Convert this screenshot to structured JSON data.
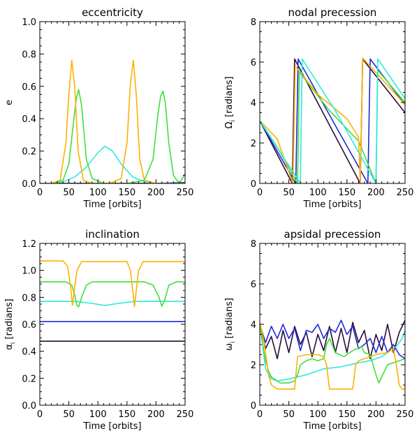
{
  "chart_data": [
    {
      "type": "line",
      "title": "eccentricity",
      "xlabel": "Time [orbits]",
      "ylabel": "e",
      "xlim": [
        0,
        250
      ],
      "ylim": [
        0,
        1.0
      ],
      "xticks": [
        "0",
        "50",
        "100",
        "150",
        "200",
        "250"
      ],
      "yticks": [
        "0.0",
        "0.2",
        "0.4",
        "0.6",
        "0.8",
        "1.0"
      ],
      "series": [
        {
          "color": "#2a0a3a",
          "x": [
            0,
            50,
            100,
            150,
            200,
            250
          ],
          "y": [
            0.0,
            0.0,
            0.0,
            0.0,
            0.0,
            0.0
          ]
        },
        {
          "color": "#1c2bd6",
          "x": [
            0,
            50,
            100,
            150,
            200,
            250
          ],
          "y": [
            0.0,
            0.0,
            0.0,
            0.0,
            0.0,
            0.005
          ]
        },
        {
          "color": "#2ee8e0",
          "x": [
            0,
            20,
            40,
            60,
            80,
            100,
            112,
            125,
            140,
            160,
            180,
            200,
            220,
            250
          ],
          "y": [
            0.0,
            0.0,
            0.01,
            0.04,
            0.1,
            0.19,
            0.23,
            0.2,
            0.12,
            0.04,
            0.01,
            0.0,
            0.0,
            0.0
          ]
        },
        {
          "color": "#3ee03a",
          "x": [
            0,
            20,
            40,
            50,
            58,
            63,
            67,
            72,
            80,
            90,
            110,
            150,
            180,
            195,
            203,
            208,
            212,
            216,
            222,
            230,
            240,
            250
          ],
          "y": [
            0.0,
            0.0,
            0.02,
            0.12,
            0.38,
            0.53,
            0.58,
            0.48,
            0.15,
            0.03,
            0.0,
            0.0,
            0.02,
            0.15,
            0.42,
            0.54,
            0.57,
            0.5,
            0.25,
            0.05,
            0.0,
            0.06
          ]
        },
        {
          "color": "#ffb000",
          "x": [
            0,
            20,
            35,
            45,
            50,
            55,
            60,
            66,
            75,
            90,
            120,
            140,
            150,
            156,
            161,
            166,
            172,
            180,
            200,
            240,
            250
          ],
          "y": [
            0.0,
            0.0,
            0.02,
            0.25,
            0.55,
            0.76,
            0.6,
            0.2,
            0.02,
            0.0,
            0.0,
            0.03,
            0.25,
            0.62,
            0.76,
            0.55,
            0.15,
            0.02,
            0.0,
            0.0,
            0.0
          ]
        }
      ]
    },
    {
      "type": "line",
      "title": "nodal precession",
      "xlabel": "Time [orbits]",
      "ylabel": "Ω",
      "ylabel_sub": "i",
      "ylabel_unit": " [radians]",
      "xlim": [
        0,
        250
      ],
      "ylim": [
        0,
        8
      ],
      "xticks": [
        "0",
        "50",
        "100",
        "150",
        "200",
        "250"
      ],
      "yticks": [
        "0",
        "2",
        "4",
        "6",
        "8"
      ],
      "series": [
        {
          "color": "#2a0a3a",
          "x": [
            0,
            56,
            60,
            173,
            177,
            250
          ],
          "y": [
            3.1,
            0.0,
            6.15,
            0.0,
            6.15,
            3.5
          ]
        },
        {
          "color": "#1c2bd6",
          "x": [
            0,
            62,
            66,
            186,
            190,
            250
          ],
          "y": [
            3.1,
            0.0,
            6.15,
            0.0,
            6.15,
            3.9
          ]
        },
        {
          "color": "#3ee03a",
          "x": [
            0,
            30,
            65,
            68,
            120,
            170,
            200,
            203,
            250
          ],
          "y": [
            3.1,
            1.8,
            0.0,
            5.5,
            3.6,
            2.1,
            0.0,
            5.6,
            4.0
          ]
        },
        {
          "color": "#ffb000",
          "x": [
            0,
            30,
            57,
            61,
            100,
            150,
            170,
            173,
            177,
            250
          ],
          "y": [
            3.1,
            2.2,
            0.0,
            5.8,
            4.4,
            3.2,
            2.3,
            0.0,
            6.2,
            3.9
          ]
        },
        {
          "color": "#2ee8e0",
          "x": [
            0,
            70,
            73,
            130,
            200,
            203,
            250
          ],
          "y": [
            3.1,
            0.0,
            6.15,
            3.6,
            0.0,
            6.15,
            4.2
          ]
        }
      ]
    },
    {
      "type": "line",
      "title": "inclination",
      "xlabel": "Time [orbits]",
      "ylabel": "α",
      "ylabel_sub": "i",
      "ylabel_unit": " [radians]",
      "xlim": [
        0,
        250
      ],
      "ylim": [
        0,
        1.2
      ],
      "xticks": [
        "0",
        "50",
        "100",
        "150",
        "200",
        "250"
      ],
      "yticks": [
        "0.0",
        "0.2",
        "0.4",
        "0.6",
        "0.8",
        "1.0",
        "1.2"
      ],
      "series": [
        {
          "color": "#2a0a3a",
          "x": [
            0,
            250
          ],
          "y": [
            0.475,
            0.475
          ]
        },
        {
          "color": "#1c2bd6",
          "x": [
            0,
            250
          ],
          "y": [
            0.62,
            0.62
          ]
        },
        {
          "color": "#2ee8e0",
          "x": [
            0,
            60,
            90,
            112,
            135,
            165,
            250
          ],
          "y": [
            0.77,
            0.77,
            0.755,
            0.74,
            0.755,
            0.77,
            0.77
          ]
        },
        {
          "color": "#3ee03a",
          "x": [
            0,
            45,
            55,
            60,
            64,
            67,
            72,
            80,
            90,
            180,
            195,
            205,
            210,
            215,
            222,
            235,
            250
          ],
          "y": [
            0.915,
            0.915,
            0.89,
            0.82,
            0.74,
            0.73,
            0.8,
            0.89,
            0.915,
            0.915,
            0.89,
            0.8,
            0.735,
            0.78,
            0.89,
            0.915,
            0.915
          ]
        },
        {
          "color": "#ffb000",
          "x": [
            0,
            40,
            48,
            53,
            56,
            59,
            64,
            72,
            150,
            156,
            160,
            163,
            166,
            170,
            178,
            250
          ],
          "y": [
            1.07,
            1.07,
            1.03,
            0.88,
            0.74,
            0.84,
            1.0,
            1.065,
            1.065,
            1.0,
            0.85,
            0.73,
            0.85,
            1.0,
            1.065,
            1.065
          ]
        }
      ]
    },
    {
      "type": "line",
      "title": "apsidal precession",
      "xlabel": "Time [orbits]",
      "ylabel": "ω",
      "ylabel_sub": "i",
      "ylabel_unit": " [radians]",
      "xlim": [
        0,
        250
      ],
      "ylim": [
        0,
        8
      ],
      "xticks": [
        "0",
        "50",
        "100",
        "150",
        "200",
        "250"
      ],
      "yticks": [
        "0",
        "2",
        "4",
        "6",
        "8"
      ],
      "series": [
        {
          "color": "#2a0a3a",
          "x": [
            0,
            10,
            20,
            30,
            40,
            50,
            60,
            70,
            80,
            90,
            100,
            110,
            120,
            130,
            140,
            150,
            160,
            170,
            180,
            190,
            200,
            210,
            220,
            230,
            240,
            250
          ],
          "y": [
            4.0,
            2.8,
            3.4,
            2.3,
            3.7,
            2.6,
            3.9,
            3.0,
            3.6,
            2.4,
            3.5,
            2.7,
            3.9,
            2.6,
            3.8,
            2.6,
            4.1,
            3.1,
            3.7,
            2.3,
            3.5,
            2.7,
            4.0,
            2.6,
            3.6,
            4.2
          ]
        },
        {
          "color": "#1c2bd6",
          "x": [
            0,
            10,
            20,
            30,
            40,
            50,
            60,
            70,
            80,
            90,
            100,
            110,
            120,
            130,
            140,
            150,
            160,
            170,
            180,
            190,
            200,
            210,
            220,
            230,
            240,
            250
          ],
          "y": [
            4.0,
            3.1,
            3.9,
            3.3,
            4.0,
            3.3,
            3.8,
            2.7,
            3.7,
            3.6,
            4.0,
            3.3,
            3.8,
            3.6,
            4.2,
            3.5,
            3.9,
            2.8,
            3.0,
            3.3,
            2.6,
            3.4,
            2.6,
            3.0,
            2.5,
            2.3
          ]
        },
        {
          "color": "#2ee8e0",
          "x": [
            0,
            10,
            20,
            30,
            50,
            80,
            110,
            140,
            170,
            190,
            210,
            225,
            235,
            245,
            250
          ],
          "y": [
            4.1,
            1.8,
            1.3,
            1.2,
            1.3,
            1.5,
            1.8,
            1.9,
            2.1,
            2.2,
            2.4,
            2.7,
            2.9,
            3.3,
            3.7
          ]
        },
        {
          "color": "#3ee03a",
          "x": [
            0,
            5,
            10,
            15,
            20,
            35,
            50,
            60,
            65,
            70,
            80,
            90,
            100,
            110,
            115,
            120,
            130,
            145,
            160,
            175,
            180,
            190,
            200,
            205,
            210,
            220,
            240,
            250
          ],
          "y": [
            4.0,
            3.0,
            2.2,
            1.7,
            1.4,
            1.1,
            1.1,
            1.2,
            1.5,
            2.0,
            2.2,
            2.3,
            2.2,
            2.3,
            3.0,
            3.3,
            2.6,
            2.4,
            2.7,
            2.9,
            2.6,
            2.5,
            1.5,
            1.1,
            1.4,
            2.0,
            2.2,
            2.3
          ]
        },
        {
          "color": "#ffb000",
          "x": [
            0,
            5,
            10,
            15,
            20,
            30,
            60,
            65,
            80,
            100,
            110,
            115,
            120,
            130,
            150,
            160,
            165,
            170,
            180,
            200,
            220,
            230,
            235,
            240,
            245,
            250
          ],
          "y": [
            4.1,
            3.5,
            2.6,
            1.5,
            1.0,
            0.8,
            0.8,
            2.4,
            2.5,
            2.5,
            2.4,
            2.0,
            0.8,
            0.8,
            0.8,
            0.8,
            2.0,
            2.2,
            2.3,
            2.5,
            2.6,
            2.8,
            2.0,
            1.0,
            0.8,
            0.8
          ]
        }
      ]
    }
  ]
}
